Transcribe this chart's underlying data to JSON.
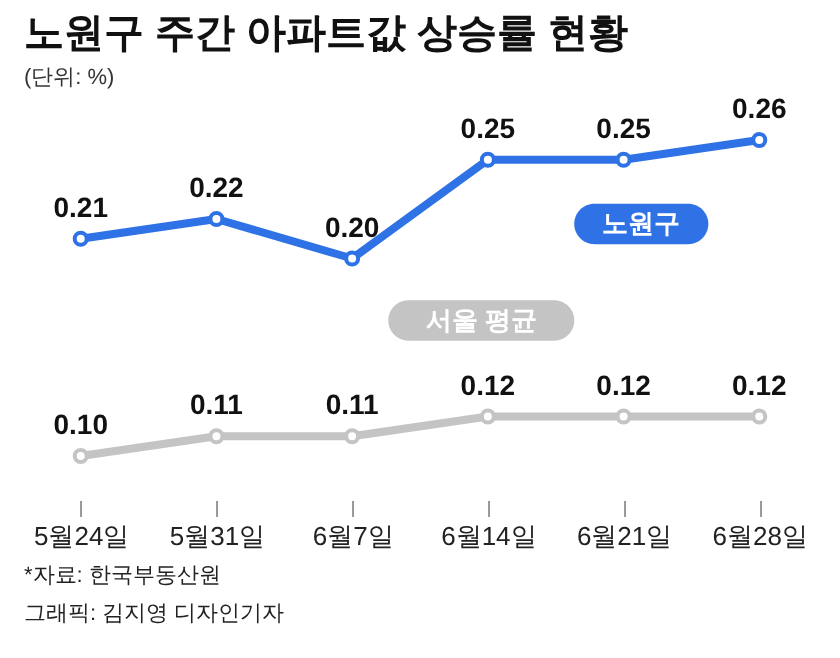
{
  "chart_data": {
    "type": "line",
    "title": "노원구 주간 아파트값 상승률 현황",
    "subtitle": "(단위: %)",
    "categories": [
      "5월24일",
      "5월31일",
      "6월7일",
      "6월14일",
      "6월21일",
      "6월28일"
    ],
    "series": [
      {
        "name": "노원구",
        "color": "#2f72e6",
        "values": [
          0.21,
          0.22,
          0.2,
          0.25,
          0.25,
          0.26
        ],
        "value_labels": [
          "0.21",
          "0.22",
          "0.20",
          "0.25",
          "0.25",
          "0.26"
        ]
      },
      {
        "name": "서울 평균",
        "color": "#c4c4c4",
        "values": [
          0.1,
          0.11,
          0.11,
          0.12,
          0.12,
          0.12
        ],
        "value_labels": [
          "0.10",
          "0.11",
          "0.11",
          "0.12",
          "0.12",
          "0.12"
        ]
      }
    ],
    "marker": "circle",
    "annotations": [
      "*자료: 한국부동산원",
      "그래픽: 김지영 디자인기자"
    ]
  }
}
